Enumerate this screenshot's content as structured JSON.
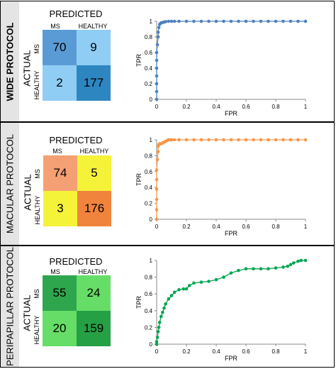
{
  "chart_data": [
    {
      "type": "table",
      "group_label": "WIDE PROTOCOL",
      "title": "PREDICTED",
      "row_title": "ACTUAL",
      "columns": [
        "MS",
        "HEALTHY"
      ],
      "rows": [
        "MS",
        "HEALTHY"
      ],
      "values": [
        [
          70,
          9
        ],
        [
          2,
          177
        ]
      ],
      "colors": [
        [
          "#5b9bd5",
          "#8fcdf5"
        ],
        [
          "#8fcdf5",
          "#2e86c1"
        ]
      ]
    },
    {
      "type": "line",
      "xlabel": "FPR",
      "ylabel": "TPR",
      "xlim": [
        0,
        1
      ],
      "ylim": [
        0,
        1
      ],
      "ticks": [
        "0",
        "0.2",
        "0.4",
        "0.6",
        "0.8",
        "1"
      ],
      "color": "#4f81bd",
      "x": [
        0,
        0,
        0,
        0,
        0,
        0,
        0,
        0.005,
        0.01,
        0.01,
        0.015,
        0.02,
        0.025,
        0.03,
        0.04,
        0.05,
        0.06,
        0.08,
        0.1,
        0.12,
        0.15,
        0.2,
        0.25,
        0.3,
        0.35,
        0.4,
        0.45,
        0.5,
        0.55,
        0.6,
        0.65,
        0.7,
        0.75,
        0.8,
        0.85,
        0.9,
        0.95,
        1
      ],
      "y": [
        0,
        0.1,
        0.2,
        0.3,
        0.4,
        0.5,
        0.6,
        0.7,
        0.8,
        0.86,
        0.92,
        0.96,
        0.97,
        0.98,
        0.985,
        0.99,
        0.995,
        1,
        1,
        1,
        1,
        1,
        1,
        1,
        1,
        1,
        1,
        1,
        1,
        1,
        1,
        1,
        1,
        1,
        1,
        1,
        1,
        1
      ]
    },
    {
      "type": "table",
      "group_label": "MACULAR PROTOCOL",
      "title": "PREDICTED",
      "row_title": "ACTUAL",
      "columns": [
        "MS",
        "HEALTHY"
      ],
      "rows": [
        "MS",
        "HEALTHY"
      ],
      "values": [
        [
          74,
          5
        ],
        [
          3,
          176
        ]
      ],
      "colors": [
        [
          "#f4a074",
          "#f5f23a"
        ],
        [
          "#f5f23a",
          "#f0843c"
        ]
      ]
    },
    {
      "type": "line",
      "xlabel": "FPR",
      "ylabel": "TPR",
      "xlim": [
        0,
        1
      ],
      "ylim": [
        0,
        1
      ],
      "ticks": [
        "0",
        "0.2",
        "0.4",
        "0.6",
        "0.8",
        "1"
      ],
      "color": "#f79646",
      "x": [
        0,
        0,
        0,
        0,
        0,
        0,
        0.005,
        0.01,
        0.01,
        0.015,
        0.02,
        0.03,
        0.04,
        0.05,
        0.06,
        0.07,
        0.08,
        0.09,
        0.1,
        0.12,
        0.15,
        0.2,
        0.25,
        0.3,
        0.35,
        0.4,
        0.45,
        0.5,
        0.55,
        0.6,
        0.65,
        0.7,
        0.75,
        0.8,
        0.85,
        0.9,
        0.95,
        1
      ],
      "y": [
        0,
        0.12,
        0.25,
        0.38,
        0.5,
        0.62,
        0.75,
        0.85,
        0.92,
        0.94,
        0.95,
        0.95,
        0.96,
        0.97,
        0.98,
        0.99,
        1,
        1,
        1,
        1,
        1,
        1,
        1,
        1,
        1,
        1,
        1,
        1,
        1,
        1,
        1,
        1,
        1,
        1,
        1,
        1,
        1,
        1
      ]
    },
    {
      "type": "table",
      "group_label": "PERIPAPILLAR PROTOCOL",
      "title": "PREDICTED",
      "row_title": "ACTUAL",
      "columns": [
        "MS",
        "HEALTHY"
      ],
      "rows": [
        "MS",
        "HEALTHY"
      ],
      "values": [
        [
          55,
          24
        ],
        [
          20,
          159
        ]
      ],
      "colors": [
        [
          "#2ea64e",
          "#66dd66"
        ],
        [
          "#66dd66",
          "#25a045"
        ]
      ]
    },
    {
      "type": "line",
      "xlabel": "FPR",
      "ylabel": "TPR",
      "xlim": [
        0,
        1
      ],
      "ylim": [
        0,
        1
      ],
      "ticks": [
        "0",
        "0.2",
        "0.4",
        "0.6",
        "0.8",
        "1"
      ],
      "color": "#00a651",
      "x": [
        0,
        0,
        0.005,
        0.01,
        0.015,
        0.02,
        0.03,
        0.04,
        0.05,
        0.06,
        0.08,
        0.1,
        0.12,
        0.15,
        0.18,
        0.2,
        0.22,
        0.25,
        0.3,
        0.35,
        0.4,
        0.45,
        0.5,
        0.55,
        0.6,
        0.65,
        0.7,
        0.75,
        0.8,
        0.85,
        0.88,
        0.9,
        0.92,
        0.95,
        0.97,
        1
      ],
      "y": [
        0,
        0.03,
        0.08,
        0.15,
        0.2,
        0.26,
        0.33,
        0.38,
        0.43,
        0.48,
        0.54,
        0.58,
        0.62,
        0.65,
        0.66,
        0.66,
        0.7,
        0.73,
        0.74,
        0.75,
        0.77,
        0.8,
        0.85,
        0.88,
        0.9,
        0.9,
        0.9,
        0.9,
        0.91,
        0.92,
        0.93,
        0.95,
        0.97,
        0.99,
        1,
        1
      ]
    }
  ]
}
